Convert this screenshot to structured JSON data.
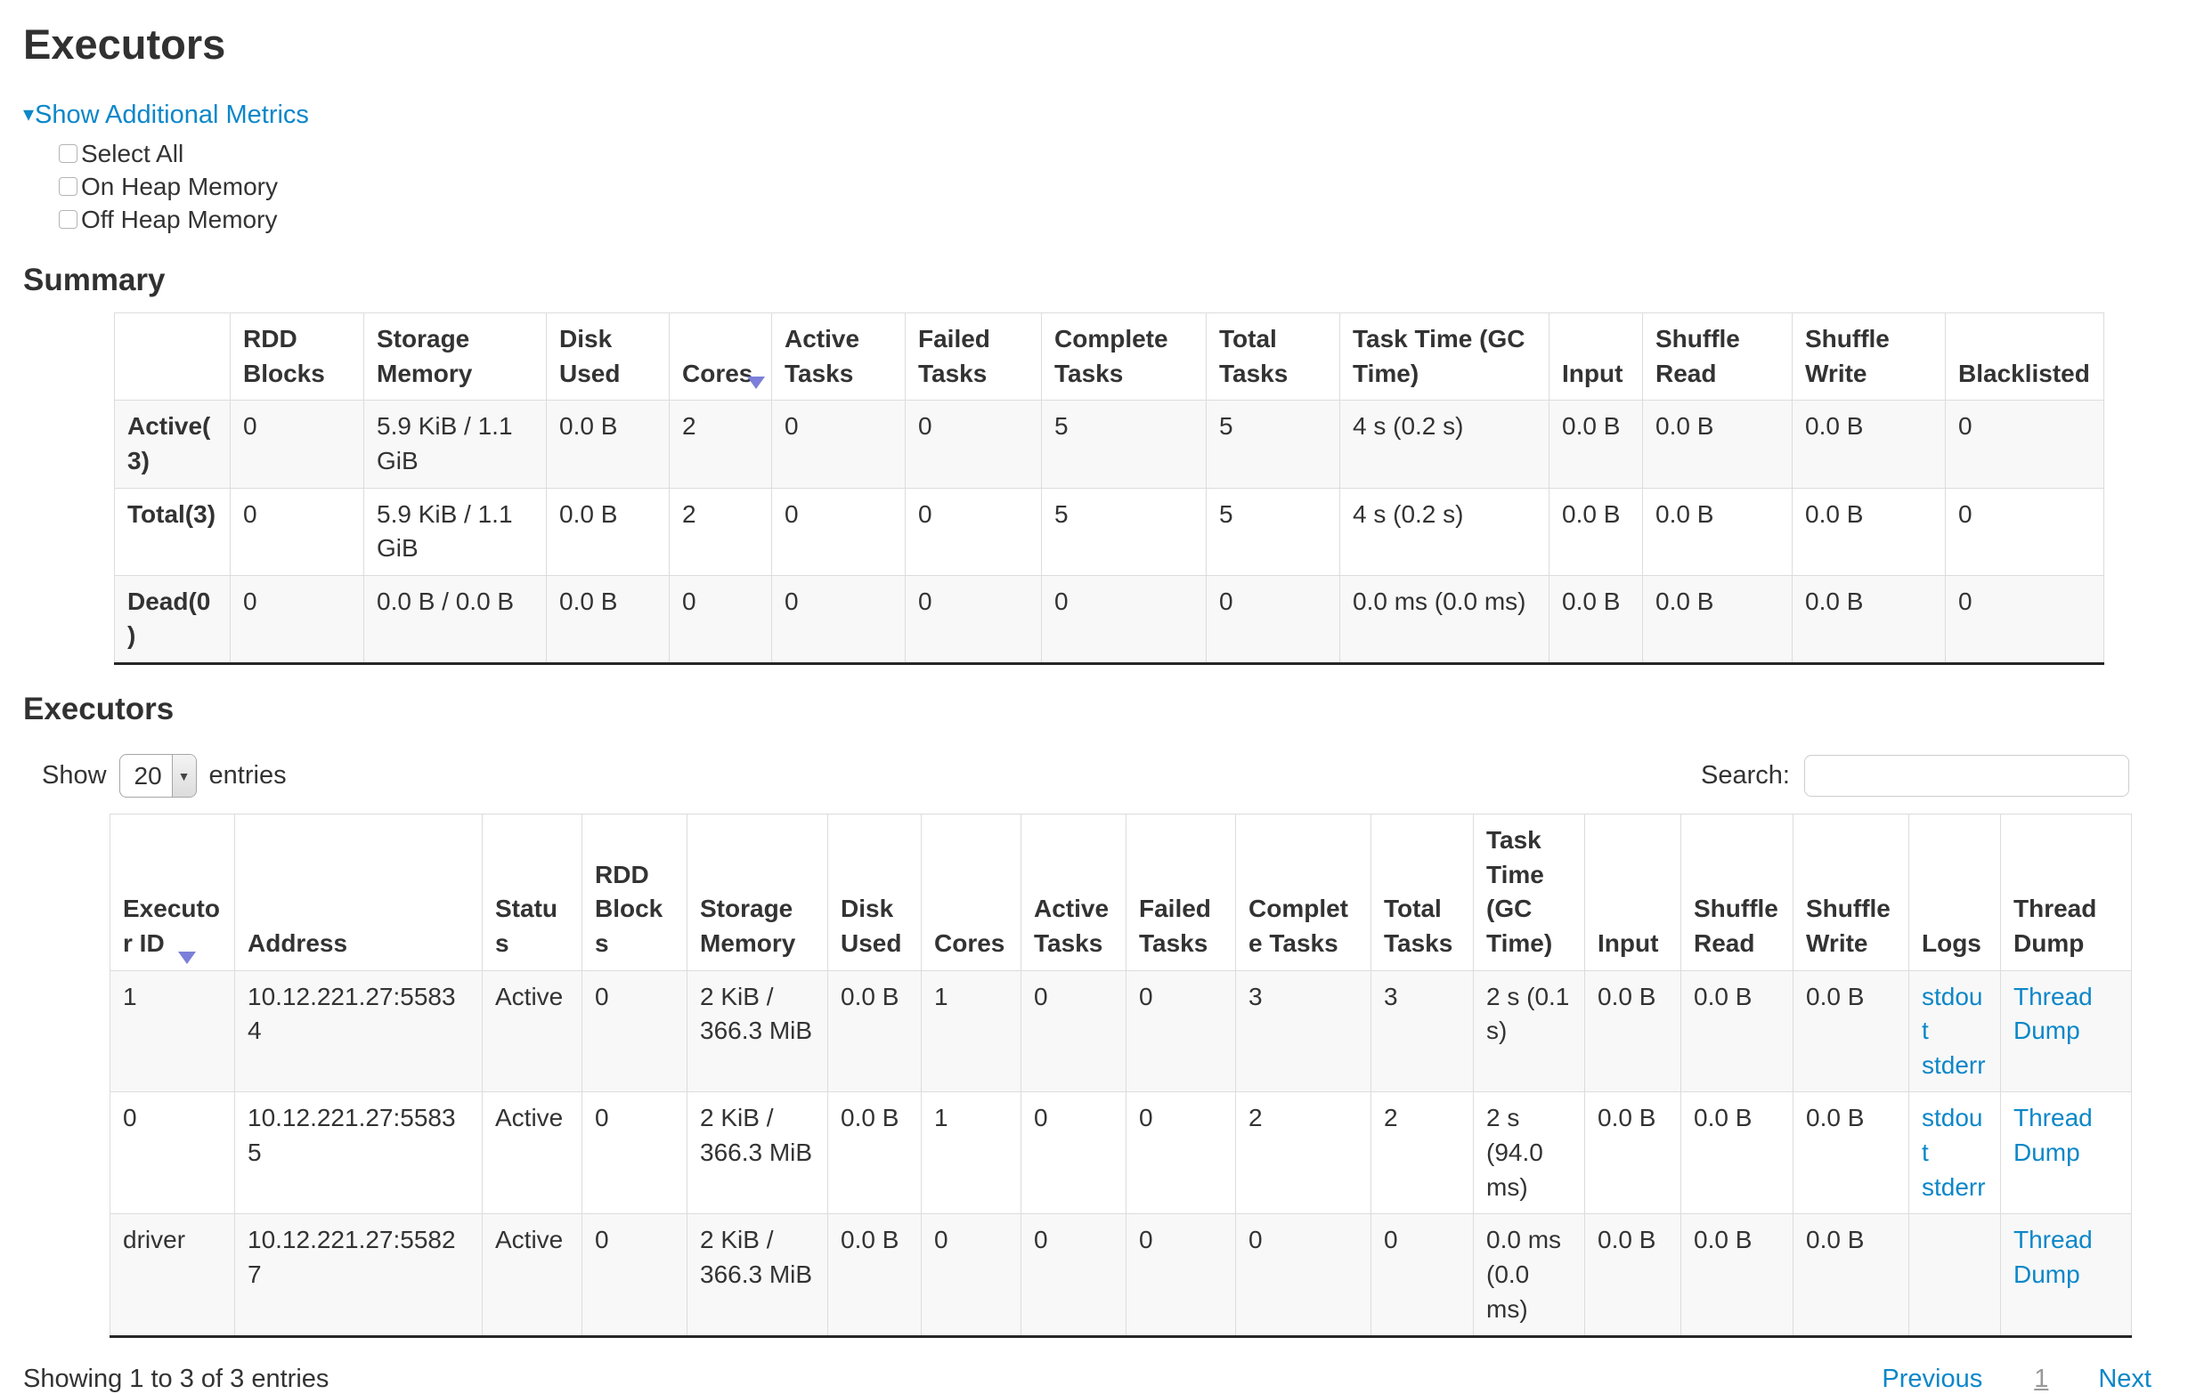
{
  "page": {
    "title": "Executors"
  },
  "metrics": {
    "toggle_label": "Show Additional Metrics",
    "checkboxes": [
      "Select All",
      "On Heap Memory",
      "Off Heap Memory"
    ]
  },
  "icons": {
    "metrics_caret": "▾",
    "select_caret": "▼"
  },
  "colors": {
    "link": "#0c87c8",
    "sort_arrow": "#7b7fd9"
  },
  "summary": {
    "heading": "Summary",
    "columns": [
      "",
      "RDD Blocks",
      "Storage Memory",
      "Disk Used",
      "Cores",
      "Active Tasks",
      "Failed Tasks",
      "Complete Tasks",
      "Total Tasks",
      "Task Time (GC Time)",
      "Input",
      "Shuffle Read",
      "Shuffle Write",
      "Blacklisted"
    ],
    "sorted_column": "Cores",
    "rows": [
      {
        "cells": [
          "Active(3)",
          "0",
          "5.9 KiB / 1.1 GiB",
          "0.0 B",
          "2",
          "0",
          "0",
          "5",
          "5",
          "4 s (0.2 s)",
          "0.0 B",
          "0.0 B",
          "0.0 B",
          "0"
        ]
      },
      {
        "cells": [
          "Total(3)",
          "0",
          "5.9 KiB / 1.1 GiB",
          "0.0 B",
          "2",
          "0",
          "0",
          "5",
          "5",
          "4 s (0.2 s)",
          "0.0 B",
          "0.0 B",
          "0.0 B",
          "0"
        ]
      },
      {
        "cells": [
          "Dead(0)",
          "0",
          "0.0 B / 0.0 B",
          "0.0 B",
          "0",
          "0",
          "0",
          "0",
          "0",
          "0.0 ms (0.0 ms)",
          "0.0 B",
          "0.0 B",
          "0.0 B",
          "0"
        ]
      }
    ]
  },
  "executors": {
    "heading": "Executors",
    "show_label": "Show",
    "page_size": "20",
    "entries_label": "entries",
    "search_label": "Search:",
    "search_value": "",
    "columns": [
      "Executor ID",
      "Address",
      "Status",
      "RDD Blocks",
      "Storage Memory",
      "Disk Used",
      "Cores",
      "Active Tasks",
      "Failed Tasks",
      "Complete Tasks",
      "Total Tasks",
      "Task Time (GC Time)",
      "Input",
      "Shuffle Read",
      "Shuffle Write",
      "Logs",
      "Thread Dump"
    ],
    "sorted_column": "Executor ID",
    "rows": [
      {
        "cells": [
          "1",
          "10.12.221.27:55834",
          "Active",
          "0",
          "2 KiB / 366.3 MiB",
          "0.0 B",
          "1",
          "0",
          "0",
          "3",
          "3",
          "2 s (0.1 s)",
          "0.0 B",
          "0.0 B",
          "0.0 B",
          {
            "links": [
              "stdout",
              "stderr"
            ],
            "stacked": true
          },
          {
            "links": [
              "Thread Dump"
            ],
            "stacked": false
          }
        ]
      },
      {
        "cells": [
          "0",
          "10.12.221.27:55835",
          "Active",
          "0",
          "2 KiB / 366.3 MiB",
          "0.0 B",
          "1",
          "0",
          "0",
          "2",
          "2",
          "2 s (94.0 ms)",
          "0.0 B",
          "0.0 B",
          "0.0 B",
          {
            "links": [
              "stdout",
              "stderr"
            ],
            "stacked": true
          },
          {
            "links": [
              "Thread Dump"
            ],
            "stacked": false
          }
        ]
      },
      {
        "cells": [
          "driver",
          "10.12.221.27:55827",
          "Active",
          "0",
          "2 KiB / 366.3 MiB",
          "0.0 B",
          "0",
          "0",
          "0",
          "0",
          "0",
          "0.0 ms (0.0 ms)",
          "0.0 B",
          "0.0 B",
          "0.0 B",
          {
            "links": [],
            "stacked": true
          },
          {
            "links": [
              "Thread Dump"
            ],
            "stacked": false
          }
        ]
      }
    ],
    "footer": {
      "info": "Showing 1 to 3 of 3 entries",
      "previous": "Previous",
      "current_page": "1",
      "next": "Next"
    }
  }
}
